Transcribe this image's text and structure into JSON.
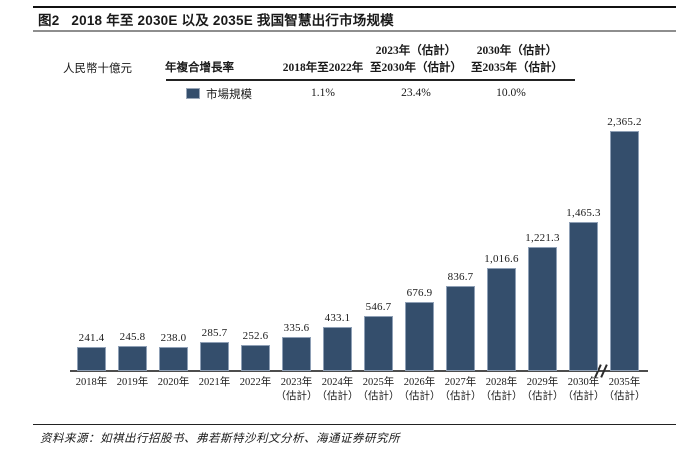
{
  "title": {
    "figure_label": "图2",
    "text": "2018 年至 2030E 以及 2035E 我国智慧出行市场规模"
  },
  "unit_label": "人民幣十億元",
  "cagr_table": {
    "row_header": "年複合增長率",
    "columns": [
      "2018年至2022年",
      "2023年（估計）\n至2030年（估計）",
      "2030年（估計）\n至2035年（估計）"
    ],
    "series_label": "市場規模",
    "values": [
      "1.1%",
      "23.4%",
      "10.0%"
    ]
  },
  "chart_data": {
    "type": "bar",
    "title": "2018 年至 2030E 以及 2035E 我国智慧出行市场规模",
    "ylabel": "人民幣十億元",
    "legend": [
      {
        "name": "市場規模",
        "color": "#344E6C"
      }
    ],
    "categories": [
      "2018年",
      "2019年",
      "2020年",
      "2021年",
      "2022年",
      "2023年（估計）",
      "2024年（估計）",
      "2025年（估計）",
      "2026年（估計）",
      "2027年（估計）",
      "2028年（估計）",
      "2029年（估計）",
      "2030年（估計）",
      "2035年（估計）"
    ],
    "values": [
      241.4,
      245.8,
      238.0,
      285.7,
      252.6,
      335.6,
      433.1,
      546.7,
      676.9,
      836.7,
      1016.6,
      1221.3,
      1465.3,
      2365.2
    ],
    "value_labels": [
      "241.4",
      "245.8",
      "238.0",
      "285.7",
      "252.6",
      "335.6",
      "433.1",
      "546.7",
      "676.9",
      "836.7",
      "1,016.6",
      "1,221.3",
      "1,465.3",
      "2,365.2"
    ],
    "cagr_annotations": {
      "2018-2022": "1.1%",
      "2023E-2030E": "23.4%",
      "2030E-2035E": "10.0%"
    },
    "bar_color": "#344E6C",
    "axis_color": "#4d4d4d",
    "ylim": [
      0,
      2450
    ],
    "grid": false,
    "legend_position": "top-left-table",
    "x_axis_break_between": [
      "2030年（估計）",
      "2035年（估計）"
    ]
  },
  "footer": {
    "source": "资料来源：如祺出行招股书、弗若斯特沙利文分析、海通证券研究所"
  }
}
